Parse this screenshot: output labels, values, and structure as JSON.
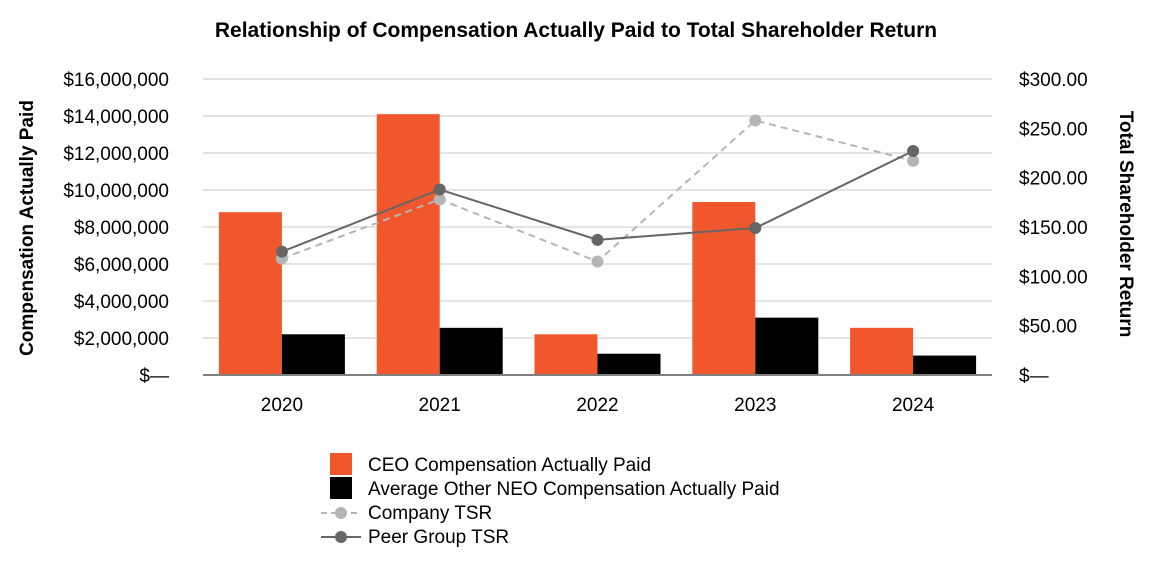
{
  "chart_data": {
    "type": "bar",
    "title": "Relationship of Compensation Actually Paid to Total Shareholder Return",
    "categories": [
      "2020",
      "2021",
      "2022",
      "2023",
      "2024"
    ],
    "y_left": {
      "label": "Compensation Actually Paid",
      "range": [
        0,
        16000000
      ],
      "ticks": [
        {
          "value": 0,
          "label": "$—"
        },
        {
          "value": 2000000,
          "label": "$2,000,000"
        },
        {
          "value": 4000000,
          "label": "$4,000,000"
        },
        {
          "value": 6000000,
          "label": "$6,000,000"
        },
        {
          "value": 8000000,
          "label": "$8,000,000"
        },
        {
          "value": 10000000,
          "label": "$10,000,000"
        },
        {
          "value": 12000000,
          "label": "$12,000,000"
        },
        {
          "value": 14000000,
          "label": "$14,000,000"
        },
        {
          "value": 16000000,
          "label": "$16,000,000"
        }
      ]
    },
    "y_right": {
      "label": "Total Shareholder Return",
      "range": [
        0,
        300
      ],
      "ticks": [
        {
          "value": 0,
          "label": "$—"
        },
        {
          "value": 50,
          "label": "$50.00"
        },
        {
          "value": 100,
          "label": "$100.00"
        },
        {
          "value": 150,
          "label": "$150.00"
        },
        {
          "value": 200,
          "label": "$200.00"
        },
        {
          "value": 250,
          "label": "$250.00"
        },
        {
          "value": 300,
          "label": "$300.00"
        }
      ]
    },
    "grid": true,
    "legend_position": "bottom",
    "bar_series": [
      {
        "name": "CEO Compensation Actually Paid",
        "color": "#F0572D",
        "values": [
          8800000,
          14100000,
          2200000,
          9350000,
          2550000
        ]
      },
      {
        "name": "Average Other NEO Compensation Actually Paid",
        "color": "#000000",
        "values": [
          2200000,
          2550000,
          1150000,
          3100000,
          1050000
        ]
      }
    ],
    "line_series": [
      {
        "name": "Company TSR",
        "color": "#B5B5B5",
        "dashed": true,
        "values": [
          118,
          178,
          115,
          258,
          217
        ]
      },
      {
        "name": "Peer Group TSR",
        "color": "#666666",
        "dashed": false,
        "values": [
          125,
          188,
          137,
          149,
          227
        ]
      }
    ]
  }
}
